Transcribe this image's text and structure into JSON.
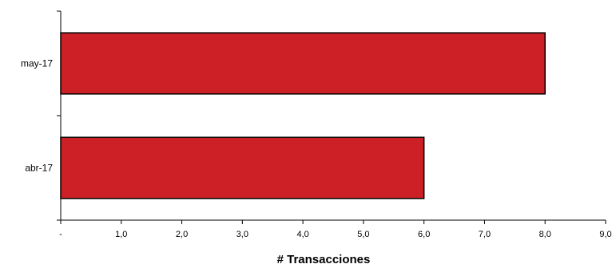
{
  "chart_data": {
    "type": "bar",
    "orientation": "horizontal",
    "categories": [
      "may-17",
      "abr-17"
    ],
    "values": [
      8,
      6
    ],
    "xlabel": "# Transacciones",
    "ylabel": "",
    "xlim": [
      0,
      9
    ],
    "xticks": [
      "-",
      "1,0",
      "2,0",
      "3,0",
      "4,0",
      "5,0",
      "6,0",
      "7,0",
      "8,0",
      "9,0"
    ],
    "grid": false,
    "legend": "none",
    "bar_color": "#cc1f26"
  }
}
